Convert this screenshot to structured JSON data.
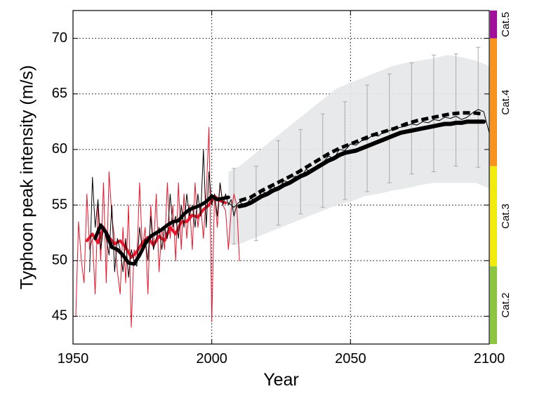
{
  "chart_data": {
    "type": "line",
    "xlabel": "Year",
    "ylabel": "Typhoon peak intensity (m/s)",
    "xlim": [
      1950,
      2100
    ],
    "ylim": [
      42.5,
      72.5
    ],
    "xticks": [
      1950,
      2000,
      2050,
      2100
    ],
    "yticks": [
      45,
      50,
      55,
      60,
      65,
      70
    ],
    "grid": true,
    "colors": {
      "observed_red": "#e8162d",
      "model_black": "#000000",
      "uncertainty_band": "#e6e7e8",
      "error_bars": "#aaaaaa"
    },
    "series": [
      {
        "style": "red-thin",
        "x": [
          1951,
          1952,
          1953,
          1954,
          1955,
          1956,
          1957,
          1958,
          1959,
          1960,
          1961,
          1962,
          1963,
          1964,
          1965,
          1966,
          1967,
          1968,
          1969,
          1970,
          1971,
          1972,
          1973,
          1974,
          1975,
          1976,
          1977,
          1978,
          1979,
          1980,
          1981,
          1982,
          1983,
          1984,
          1985,
          1986,
          1987,
          1988,
          1989,
          1990,
          1991,
          1992,
          1993,
          1994,
          1995,
          1996,
          1997,
          1998,
          1999,
          2000,
          2001,
          2002,
          2003,
          2004,
          2005,
          2006,
          2007,
          2008,
          2009,
          2010
        ],
        "values": [
          45,
          53.5,
          50,
          48,
          56,
          51,
          52,
          47,
          55,
          50,
          57,
          48,
          58,
          54,
          52,
          49,
          47,
          53,
          48,
          55,
          44,
          51,
          50,
          57,
          51,
          53,
          47,
          55,
          51,
          56,
          49,
          53,
          51,
          57,
          52,
          55,
          50,
          57,
          51,
          56,
          52,
          55,
          51,
          57,
          53,
          55,
          52,
          56,
          62,
          44.5,
          56,
          53,
          57,
          55,
          54.5,
          51,
          54.5,
          56,
          55,
          50
        ]
      },
      {
        "style": "red-thick",
        "x": [
          1955,
          1957,
          1959,
          1961,
          1963,
          1965,
          1967,
          1969,
          1971,
          1973,
          1975,
          1977,
          1979,
          1981,
          1983,
          1985,
          1987,
          1989,
          1991,
          1993,
          1995,
          1997,
          1999,
          2001,
          2003,
          2005
        ],
        "values": [
          51.8,
          52.4,
          51.6,
          53.0,
          52.1,
          51.5,
          51.8,
          51.2,
          50.3,
          50.8,
          51.6,
          52.1,
          51.4,
          52.2,
          51.8,
          53.0,
          52.4,
          53.5,
          53.5,
          54.1,
          53.9,
          54.6,
          55.0,
          55.8,
          55.4,
          55.2
        ]
      },
      {
        "style": "black-thin-historical",
        "x": [
          1956,
          1957,
          1958,
          1959,
          1960,
          1961,
          1962,
          1963,
          1964,
          1965,
          1966,
          1967,
          1968,
          1969,
          1970,
          1971,
          1972,
          1973,
          1974,
          1975,
          1976,
          1977,
          1978,
          1979,
          1980,
          1981,
          1982,
          1983,
          1984,
          1985,
          1986,
          1987,
          1988,
          1989,
          1990,
          1991,
          1992,
          1993,
          1994,
          1995,
          1996,
          1997,
          1998,
          1999,
          2000,
          2001,
          2002,
          2003,
          2004,
          2005,
          2006,
          2007,
          2008,
          2009
        ],
        "values": [
          49,
          57.5,
          53,
          55.5,
          51,
          53,
          52,
          50.5,
          55,
          49,
          52,
          51,
          49,
          52,
          48.5,
          51,
          50,
          49.5,
          53,
          51,
          52,
          50,
          54,
          51,
          52,
          53,
          51,
          53,
          52,
          56,
          53,
          54,
          52,
          55,
          53,
          56,
          54,
          55,
          53,
          56,
          54,
          60,
          53,
          58,
          55,
          56,
          54,
          57,
          55,
          56,
          55,
          55.5,
          54,
          55
        ]
      },
      {
        "style": "black-thick-historical",
        "x": [
          1958,
          1960,
          1962,
          1964,
          1966,
          1968,
          1970,
          1972,
          1974,
          1976,
          1978,
          1980,
          1982,
          1984,
          1986,
          1988,
          1990,
          1992,
          1994,
          1996,
          1998,
          2000,
          2002,
          2004,
          2006
        ],
        "values": [
          52.0,
          53.2,
          52.5,
          51.2,
          51.0,
          50.5,
          49.8,
          49.7,
          50.5,
          51.5,
          52.2,
          52.5,
          52.8,
          53.2,
          53.5,
          53.6,
          54.2,
          54.6,
          54.8,
          55.0,
          55.3,
          55.8,
          55.5,
          55.6,
          55.7
        ]
      },
      {
        "style": "black-thin-projection",
        "x": [
          2006,
          2008,
          2010,
          2012,
          2014,
          2016,
          2018,
          2020,
          2022,
          2024,
          2026,
          2028,
          2030,
          2032,
          2034,
          2036,
          2038,
          2040,
          2042,
          2044,
          2046,
          2048,
          2050,
          2052,
          2054,
          2056,
          2058,
          2060,
          2062,
          2064,
          2066,
          2068,
          2070,
          2072,
          2074,
          2076,
          2078,
          2080,
          2082,
          2084,
          2086,
          2088,
          2090,
          2092,
          2094,
          2096,
          2098,
          2100
        ],
        "values": [
          55.2,
          54.8,
          55.3,
          54.9,
          55.6,
          55.4,
          56.2,
          56.1,
          56.7,
          56.4,
          57.2,
          57.0,
          57.6,
          57.5,
          58.2,
          58.0,
          58.6,
          58.8,
          59.4,
          59.2,
          60.0,
          59.9,
          60.5,
          60.4,
          60.8,
          60.9,
          61.3,
          61.2,
          61.6,
          61.7,
          61.9,
          62.0,
          62.1,
          62.3,
          62.2,
          62.5,
          62.4,
          62.7,
          62.6,
          62.9,
          62.8,
          63.0,
          62.7,
          62.9,
          63.3,
          63.6,
          63.4,
          61.5
        ]
      },
      {
        "style": "black-thick-projection",
        "x": [
          2010,
          2012,
          2014,
          2016,
          2018,
          2020,
          2022,
          2024,
          2026,
          2028,
          2030,
          2032,
          2034,
          2036,
          2038,
          2040,
          2042,
          2044,
          2046,
          2048,
          2050,
          2052,
          2054,
          2056,
          2058,
          2060,
          2062,
          2064,
          2066,
          2068,
          2070,
          2072,
          2074,
          2076,
          2078,
          2080,
          2082,
          2084,
          2086,
          2088,
          2090,
          2092,
          2094,
          2096,
          2098
        ],
        "values": [
          54.9,
          55.0,
          55.2,
          55.5,
          55.8,
          56.0,
          56.3,
          56.5,
          56.8,
          57.0,
          57.3,
          57.6,
          57.8,
          58.1,
          58.4,
          58.7,
          59.0,
          59.2,
          59.5,
          59.7,
          59.8,
          59.9,
          60.1,
          60.3,
          60.5,
          60.7,
          60.9,
          61.1,
          61.3,
          61.5,
          61.6,
          61.7,
          61.8,
          61.9,
          62.0,
          62.1,
          62.2,
          62.3,
          62.3,
          62.4,
          62.4,
          62.5,
          62.5,
          62.5,
          62.5
        ]
      },
      {
        "style": "black-dashed-projection",
        "x": [
          2010,
          2014,
          2018,
          2022,
          2026,
          2030,
          2034,
          2038,
          2042,
          2046,
          2050,
          2054,
          2058,
          2062,
          2066,
          2070,
          2074,
          2078,
          2082,
          2086,
          2090,
          2094,
          2098
        ],
        "values": [
          55.4,
          55.7,
          56.3,
          56.8,
          57.3,
          57.8,
          58.4,
          59.0,
          59.6,
          60.1,
          60.5,
          60.9,
          61.3,
          61.6,
          61.9,
          62.3,
          62.6,
          62.8,
          63.0,
          63.2,
          63.3,
          63.3,
          63.2
        ]
      }
    ],
    "uncertainty_band": {
      "x": [
        2006,
        2010,
        2015,
        2020,
        2025,
        2030,
        2035,
        2040,
        2045,
        2050,
        2055,
        2060,
        2065,
        2070,
        2075,
        2080,
        2085,
        2090,
        2095,
        2100
      ],
      "lower": [
        51.5,
        51.5,
        52.0,
        52.5,
        53.0,
        53.5,
        54.0,
        54.5,
        55.0,
        55.3,
        55.8,
        56.0,
        56.3,
        56.5,
        56.8,
        57.0,
        57.0,
        57.0,
        57.0,
        56.5
      ],
      "upper": [
        58.0,
        58.5,
        59.5,
        60.5,
        61.5,
        62.5,
        63.5,
        64.5,
        65.5,
        66.0,
        66.5,
        67.0,
        67.5,
        67.8,
        68.0,
        68.2,
        68.5,
        68.3,
        68.0,
        67.5
      ]
    },
    "error_bars": {
      "x": [
        2008,
        2016,
        2024,
        2032,
        2040,
        2048,
        2056,
        2064,
        2072,
        2080,
        2088,
        2096
      ],
      "lower": [
        51.5,
        51.8,
        53.2,
        54.2,
        54.8,
        55.5,
        56.2,
        57.0,
        57.8,
        58.0,
        58.5,
        58.4
      ],
      "upper": [
        58.3,
        58.5,
        60.8,
        61.8,
        63.2,
        64.3,
        65.8,
        66.8,
        67.8,
        68.5,
        68.6,
        69.2
      ]
    },
    "categories_bar": [
      {
        "label": "Cat.2",
        "from": 42.5,
        "to": 49.5,
        "color": "#8cc63f"
      },
      {
        "label": "Cat.3",
        "from": 49.5,
        "to": 58.5,
        "color": "#f2ec0e"
      },
      {
        "label": "Cat.4",
        "from": 58.5,
        "to": 70.0,
        "color": "#f7941d"
      },
      {
        "label": "Cat.5",
        "from": 70.0,
        "to": 72.5,
        "color": "#a0109a"
      }
    ]
  }
}
